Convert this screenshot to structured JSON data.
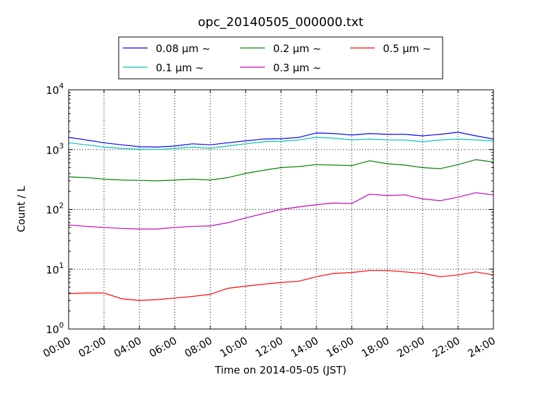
{
  "chart_data": {
    "type": "line",
    "title": "opc_20140505_000000.txt",
    "xlabel": "Time on 2014-05-05 (JST)",
    "ylabel": "Count / L",
    "x_unit": "hour of day (JST)",
    "xlim": [
      0,
      24
    ],
    "ylim": [
      1,
      10000
    ],
    "yscale": "log",
    "grid": true,
    "legend_position": "top-center (above plot)",
    "x_ticks": [
      {
        "value": 0,
        "label": "00:00"
      },
      {
        "value": 2,
        "label": "02:00"
      },
      {
        "value": 4,
        "label": "04:00"
      },
      {
        "value": 6,
        "label": "06:00"
      },
      {
        "value": 8,
        "label": "08:00"
      },
      {
        "value": 10,
        "label": "10:00"
      },
      {
        "value": 12,
        "label": "12:00"
      },
      {
        "value": 14,
        "label": "14:00"
      },
      {
        "value": 16,
        "label": "16:00"
      },
      {
        "value": 18,
        "label": "18:00"
      },
      {
        "value": 20,
        "label": "20:00"
      },
      {
        "value": 22,
        "label": "22:00"
      },
      {
        "value": 24,
        "label": "24:00"
      }
    ],
    "y_ticks": [
      {
        "value": 1,
        "base": "10",
        "exp": "0"
      },
      {
        "value": 10,
        "base": "10",
        "exp": "1"
      },
      {
        "value": 100,
        "base": "10",
        "exp": "2"
      },
      {
        "value": 1000,
        "base": "10",
        "exp": "3"
      },
      {
        "value": 10000,
        "base": "10",
        "exp": "4"
      }
    ],
    "x": [
      0,
      1,
      2,
      3,
      4,
      5,
      6,
      7,
      8,
      9,
      10,
      11,
      12,
      13,
      14,
      15,
      16,
      17,
      18,
      19,
      20,
      21,
      22,
      23,
      24
    ],
    "series": [
      {
        "name": "0.08 μm ~",
        "color": "#0000ff",
        "values": [
          1600,
          1450,
          1300,
          1200,
          1120,
          1100,
          1150,
          1250,
          1200,
          1300,
          1400,
          1500,
          1520,
          1600,
          1900,
          1850,
          1750,
          1850,
          1800,
          1800,
          1700,
          1800,
          1950,
          1700,
          1500
        ]
      },
      {
        "name": "0.1 μm ~",
        "color": "#00bfbf",
        "values": [
          1300,
          1200,
          1100,
          1050,
          1020,
          1000,
          1050,
          1100,
          1050,
          1150,
          1250,
          1350,
          1380,
          1450,
          1600,
          1550,
          1450,
          1500,
          1450,
          1450,
          1350,
          1450,
          1500,
          1450,
          1400
        ]
      },
      {
        "name": "0.2 μm ~",
        "color": "#008000",
        "values": [
          350,
          340,
          320,
          310,
          305,
          300,
          310,
          320,
          310,
          340,
          400,
          450,
          500,
          520,
          560,
          550,
          540,
          650,
          580,
          550,
          500,
          480,
          560,
          680,
          620
        ]
      },
      {
        "name": "0.3 μm ~",
        "color": "#bf00bf",
        "values": [
          55,
          52,
          50,
          48,
          47,
          47,
          50,
          52,
          53,
          60,
          72,
          85,
          100,
          110,
          120,
          128,
          125,
          180,
          170,
          175,
          150,
          140,
          160,
          190,
          175
        ]
      },
      {
        "name": "0.5 μm ~",
        "color": "#ff0000",
        "values": [
          3.9,
          4.0,
          4.0,
          3.2,
          3.0,
          3.1,
          3.3,
          3.5,
          3.8,
          4.8,
          5.2,
          5.6,
          6.0,
          6.3,
          7.5,
          8.5,
          8.8,
          9.5,
          9.5,
          9.0,
          8.5,
          7.5,
          8.0,
          9.0,
          8.0
        ]
      }
    ]
  }
}
